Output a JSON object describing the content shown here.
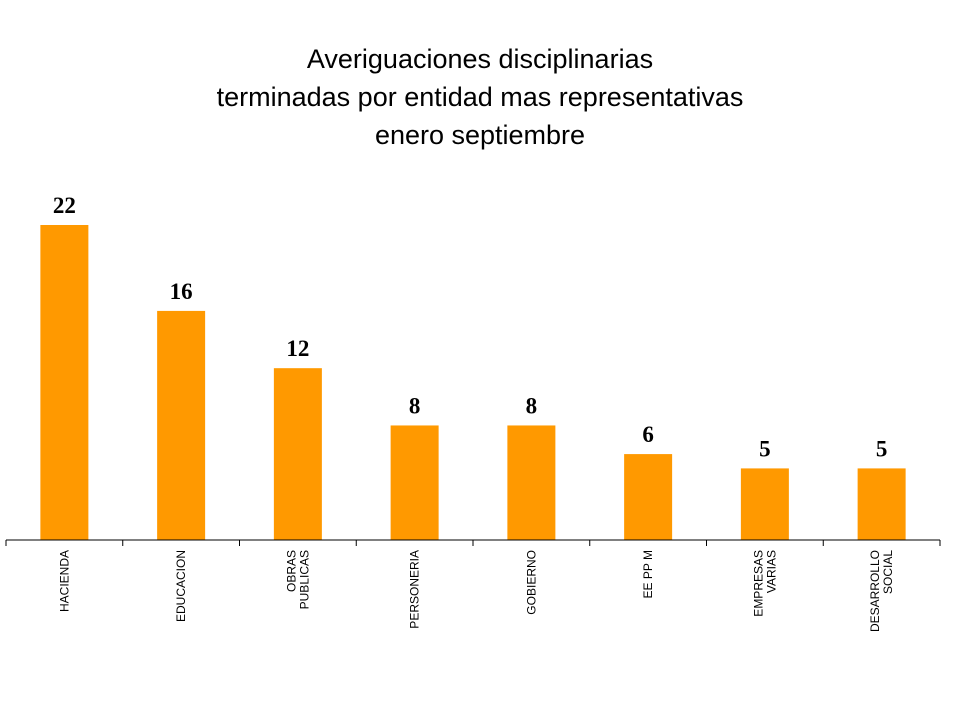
{
  "chart_data": {
    "type": "bar",
    "title": [
      "Averiguaciones disciplinarias",
      "terminadas por entidad mas representativas",
      "enero septiembre"
    ],
    "categories": [
      [
        "HACIENDA"
      ],
      [
        "EDUCACION"
      ],
      [
        "OBRAS",
        "PUBLICAS"
      ],
      [
        "PERSONERIA"
      ],
      [
        "GOBIERNO"
      ],
      [
        "EE PP M"
      ],
      [
        "EMPRESAS",
        "VARIAS"
      ],
      [
        "DESARROLLO",
        "SOCIAL"
      ]
    ],
    "values": [
      22,
      16,
      12,
      8,
      8,
      6,
      5,
      5
    ],
    "bar_color": "#FF9900",
    "axis_color": "#000000",
    "ylim": [
      0,
      22
    ],
    "grid": false,
    "legend": "none",
    "data_labels": true
  }
}
